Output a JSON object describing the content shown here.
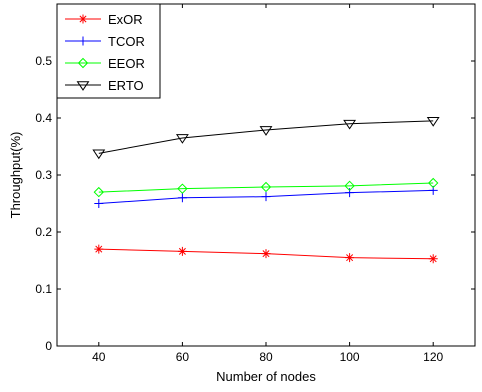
{
  "chart_data": {
    "type": "line",
    "title": "",
    "xlabel": "Number of nodes",
    "ylabel": "Throughput(%)",
    "x": [
      40,
      60,
      80,
      100,
      120
    ],
    "xlim": [
      30,
      130
    ],
    "ylim": [
      0,
      0.6
    ],
    "xticks": [
      40,
      60,
      80,
      100,
      120
    ],
    "yticks": [
      0,
      0.1,
      0.2,
      0.3,
      0.4,
      0.5
    ],
    "ytick_labels": [
      "0",
      "0.1",
      "0.2",
      "0.3",
      "0.4",
      "0.5"
    ],
    "grid": false,
    "legend_position": "top-left",
    "series": [
      {
        "name": "ExOR",
        "values": [
          0.17,
          0.166,
          0.162,
          0.155,
          0.153
        ],
        "color": "#ff0000",
        "marker": "asterisk"
      },
      {
        "name": "TCOR",
        "values": [
          0.25,
          0.26,
          0.262,
          0.269,
          0.273
        ],
        "color": "#0000ff",
        "marker": "plus"
      },
      {
        "name": "EEOR",
        "values": [
          0.27,
          0.276,
          0.279,
          0.281,
          0.286
        ],
        "color": "#00ff00",
        "marker": "diamond"
      },
      {
        "name": "ERTO",
        "values": [
          0.338,
          0.365,
          0.379,
          0.39,
          0.395
        ],
        "color": "#000000",
        "marker": "triangle-down"
      }
    ]
  }
}
